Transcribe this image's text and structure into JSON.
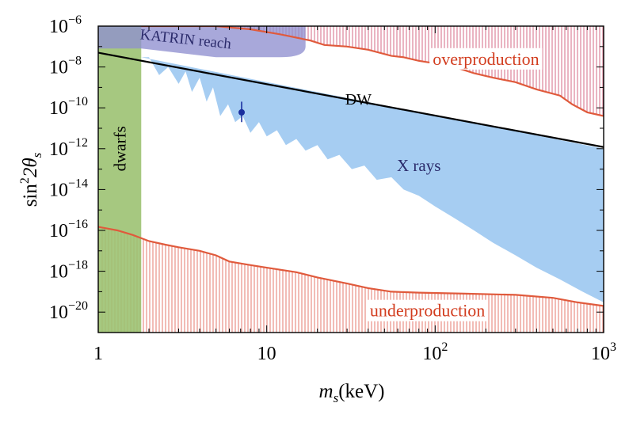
{
  "chart_data": {
    "type": "area",
    "title": "",
    "xlabel": {
      "main": "m",
      "sub": "s",
      "unit": "(keV)"
    },
    "ylabel": {
      "prefix": "sin",
      "sup": "2",
      "mid": "2θ",
      "sub": "s"
    },
    "x_scale": "log",
    "y_scale": "log",
    "xlim": [
      1,
      1000
    ],
    "ylim": [
      1e-21,
      1e-06
    ],
    "x_ticks": [
      {
        "value": 1,
        "base": "1",
        "exp": ""
      },
      {
        "value": 10,
        "base": "10",
        "exp": ""
      },
      {
        "value": 100,
        "base": "10",
        "exp": "2"
      },
      {
        "value": 1000,
        "base": "10",
        "exp": "3"
      }
    ],
    "y_ticks": [
      {
        "value": 1e-06,
        "base": "10",
        "exp": "−6"
      },
      {
        "value": 1e-08,
        "base": "10",
        "exp": "−8"
      },
      {
        "value": 1e-10,
        "base": "10",
        "exp": "−10"
      },
      {
        "value": 1e-12,
        "base": "10",
        "exp": "−12"
      },
      {
        "value": 1e-14,
        "base": "10",
        "exp": "−14"
      },
      {
        "value": 1e-16,
        "base": "10",
        "exp": "−16"
      },
      {
        "value": 1e-18,
        "base": "10",
        "exp": "−18"
      },
      {
        "value": 1e-20,
        "base": "10",
        "exp": "−20"
      }
    ],
    "regions": {
      "xrays": {
        "name": "X rays",
        "color": "#a6cdf2",
        "top": [
          [
            1.8,
            3e-08
          ],
          [
            1000,
            1e-12
          ]
        ],
        "bottom": [
          [
            2.0,
            3e-08
          ],
          [
            2.3,
            4e-09
          ],
          [
            2.6,
            1e-08
          ],
          [
            3.0,
            1.5e-09
          ],
          [
            3.3,
            6e-09
          ],
          [
            3.6,
            6e-10
          ],
          [
            4.0,
            3e-09
          ],
          [
            4.4,
            2e-10
          ],
          [
            4.8,
            1e-09
          ],
          [
            5.3,
            4e-11
          ],
          [
            5.9,
            1.5e-10
          ],
          [
            6.5,
            2e-11
          ],
          [
            7.2,
            4e-11
          ],
          [
            8.0,
            6e-12
          ],
          [
            9.0,
            2e-11
          ],
          [
            10.0,
            4e-12
          ],
          [
            11.5,
            8e-12
          ],
          [
            13.0,
            1.5e-12
          ],
          [
            15.0,
            3e-12
          ],
          [
            17.0,
            8e-13
          ],
          [
            20.0,
            1.5e-12
          ],
          [
            23.0,
            3e-13
          ],
          [
            27.0,
            5e-13
          ],
          [
            32.0,
            1e-13
          ],
          [
            38.0,
            1.5e-13
          ],
          [
            45.0,
            3e-14
          ],
          [
            55.0,
            4e-14
          ],
          [
            65.0,
            1e-14
          ],
          [
            80.0,
            5e-15
          ],
          [
            100.0,
            1.5e-15
          ],
          [
            130.0,
            4e-16
          ],
          [
            170.0,
            1e-16
          ],
          [
            220.0,
            2.5e-17
          ],
          [
            300.0,
            6e-18
          ],
          [
            400.0,
            1.5e-18
          ],
          [
            550.0,
            4e-19
          ],
          [
            750.0,
            1e-19
          ],
          [
            1000.0,
            3e-20
          ]
        ]
      },
      "overproduction": {
        "name": "overproduction",
        "color": "#e05a3c",
        "hatch_color": "#d9778f",
        "boundary": [
          [
            1.8,
            1e-06
          ],
          [
            5.0,
            1e-06
          ],
          [
            8.0,
            7e-07
          ],
          [
            12.0,
            4e-07
          ],
          [
            18.0,
            2e-07
          ],
          [
            22.0,
            1.2e-07
          ],
          [
            30.0,
            1e-07
          ],
          [
            40.0,
            7e-08
          ],
          [
            55.0,
            3.5e-08
          ],
          [
            65.0,
            3e-08
          ],
          [
            80.0,
            2e-08
          ],
          [
            100.0,
            1.5e-08
          ],
          [
            130.0,
            1e-08
          ],
          [
            170.0,
            5e-09
          ],
          [
            220.0,
            3e-09
          ],
          [
            300.0,
            1.8e-09
          ],
          [
            400.0,
            8e-10
          ],
          [
            550.0,
            4e-10
          ],
          [
            650.0,
            1.5e-10
          ],
          [
            800.0,
            6e-11
          ],
          [
            1000.0,
            4e-11
          ]
        ]
      },
      "underproduction": {
        "name": "underproduction",
        "color": "#e05a3c",
        "hatch_color": "#e8857a",
        "boundary": [
          [
            1.0,
            1.5e-16
          ],
          [
            1.3,
            1e-16
          ],
          [
            1.6,
            6e-17
          ],
          [
            2.0,
            3e-17
          ],
          [
            2.5,
            2e-17
          ],
          [
            3.0,
            1.5e-17
          ],
          [
            4.0,
            1e-17
          ],
          [
            5.0,
            6e-18
          ],
          [
            6.0,
            3e-18
          ],
          [
            8.0,
            2e-18
          ],
          [
            10.0,
            1.5e-18
          ],
          [
            15.0,
            9e-19
          ],
          [
            20.0,
            5e-19
          ],
          [
            30.0,
            2.5e-19
          ],
          [
            40.0,
            1.5e-19
          ],
          [
            55.0,
            1e-19
          ],
          [
            80.0,
            9e-20
          ],
          [
            150.0,
            8e-20
          ],
          [
            300.0,
            7e-20
          ],
          [
            500.0,
            5e-20
          ],
          [
            700.0,
            3e-20
          ],
          [
            1000.0,
            2e-20
          ]
        ]
      },
      "dwarfs": {
        "name": "dwarfs",
        "color": "#9cc272",
        "x_range": [
          1,
          1.8
        ]
      },
      "katrin": {
        "name": "KATRIN reach",
        "color": "#8f8fcf",
        "boundary": [
          [
            1,
            1e-06
          ],
          [
            17.0,
            1e-06
          ],
          [
            17.0,
            1e-07
          ],
          [
            12.0,
            3e-08
          ],
          [
            5.0,
            3e-08
          ],
          [
            1.8,
            8e-08
          ],
          [
            1.0,
            8e-08
          ]
        ]
      }
    },
    "series": [
      {
        "name": "DW",
        "type": "line",
        "color": "#000000",
        "points": [
          [
            1.0,
            5e-08
          ],
          [
            1000.0,
            1.2e-12
          ]
        ]
      }
    ],
    "points": [
      {
        "x": 7.1,
        "y": 6e-11,
        "yerr_low": 2e-11,
        "yerr_high": 2e-10,
        "color": "#1a2f9e"
      }
    ],
    "annotations": [
      {
        "key": "katrin",
        "text": "KATRIN reach",
        "x": 3.3,
        "y": 2.2e-07,
        "color": "#2b2b6b",
        "rotate": 6
      },
      {
        "key": "over",
        "text": "overproduction",
        "x": 200,
        "y": 2.5e-08,
        "color": "#d23c1e",
        "rotate": 0
      },
      {
        "key": "dw",
        "text": "DW",
        "x": 35,
        "y": 2.5e-10,
        "color": "#000000",
        "rotate": 0
      },
      {
        "key": "xrays",
        "text": "X rays",
        "x": 80,
        "y": 1.5e-13,
        "color": "#2b2b6b",
        "rotate": 0
      },
      {
        "key": "dwarfs",
        "text": "dwarfs",
        "x": 1.35,
        "y": 1e-12,
        "color": "#000000",
        "rotate": -90
      },
      {
        "key": "under",
        "text": "underproduction",
        "x": 90,
        "y": 1.2e-20,
        "color": "#d23c1e",
        "rotate": 0
      }
    ]
  }
}
